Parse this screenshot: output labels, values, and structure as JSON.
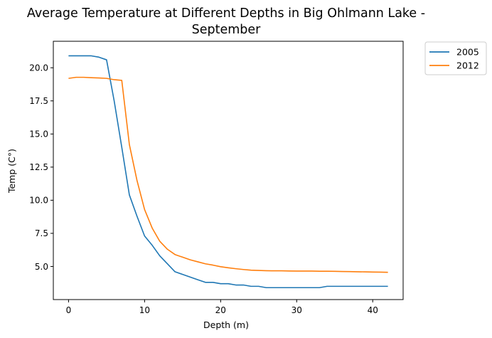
{
  "chart_data": {
    "type": "line",
    "title_lines": [
      "Average Temperature at Different Depths in Big Ohlmann Lake -",
      "September"
    ],
    "xlabel": "Depth (m)",
    "ylabel": "Temp (C°)",
    "xlim": [
      -2,
      44
    ],
    "ylim": [
      2.5,
      22
    ],
    "xticks": [
      0,
      10,
      20,
      30,
      40
    ],
    "yticks": [
      5.0,
      7.5,
      10.0,
      12.5,
      15.0,
      17.5,
      20.0
    ],
    "xtick_labels": [
      "0",
      "10",
      "20",
      "30",
      "40"
    ],
    "ytick_labels": [
      "5.0",
      "7.5",
      "10.0",
      "12.5",
      "15.0",
      "17.5",
      "20.0"
    ],
    "grid": false,
    "legend_position": "outside upper right",
    "series": [
      {
        "name": "2005",
        "color": "#1f77b4",
        "x": [
          0,
          1,
          2,
          3,
          4,
          5,
          6,
          7,
          8,
          9,
          10,
          11,
          12,
          13,
          14,
          15,
          16,
          17,
          18,
          19,
          20,
          21,
          22,
          23,
          24,
          25,
          26,
          27,
          28,
          29,
          30,
          31,
          32,
          33,
          34,
          35,
          36,
          37,
          38,
          39,
          40,
          41,
          42
        ],
        "y": [
          20.9,
          20.9,
          20.9,
          20.9,
          20.8,
          20.6,
          17.5,
          14.0,
          10.4,
          8.8,
          7.3,
          6.6,
          5.8,
          5.2,
          4.6,
          4.4,
          4.2,
          4.0,
          3.8,
          3.8,
          3.7,
          3.7,
          3.6,
          3.6,
          3.5,
          3.5,
          3.4,
          3.4,
          3.4,
          3.4,
          3.4,
          3.4,
          3.4,
          3.4,
          3.5,
          3.5,
          3.5,
          3.5,
          3.5,
          3.5,
          3.5,
          3.5,
          3.5
        ]
      },
      {
        "name": "2012",
        "color": "#ff7f0e",
        "x": [
          0,
          1,
          2,
          3,
          4,
          5,
          6,
          7,
          8,
          9,
          10,
          11,
          12,
          13,
          14,
          15,
          16,
          17,
          18,
          19,
          20,
          21,
          22,
          23,
          24,
          25,
          26,
          27,
          28,
          29,
          30,
          31,
          32,
          33,
          34,
          35,
          36,
          37,
          38,
          39,
          40,
          41,
          42
        ],
        "y": [
          19.2,
          19.28,
          19.28,
          19.25,
          19.23,
          19.2,
          19.1,
          19.05,
          14.2,
          11.5,
          9.3,
          7.9,
          6.9,
          6.3,
          5.9,
          5.7,
          5.5,
          5.35,
          5.2,
          5.1,
          4.98,
          4.9,
          4.83,
          4.77,
          4.72,
          4.7,
          4.68,
          4.67,
          4.67,
          4.66,
          4.65,
          4.65,
          4.65,
          4.64,
          4.64,
          4.63,
          4.62,
          4.61,
          4.6,
          4.59,
          4.58,
          4.57,
          4.56
        ]
      }
    ]
  }
}
